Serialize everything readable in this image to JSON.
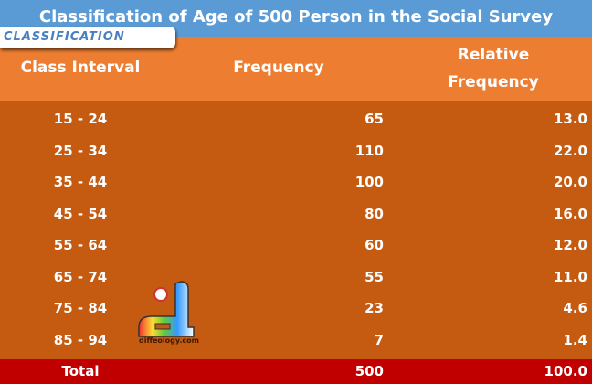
{
  "title": "Classification of Age of 500 Person in the Social Survey",
  "badge": "CLASSIFICATION",
  "logo_text": "diffeology.com",
  "colors": {
    "title_bg": "#5b9bd5",
    "header_bg": "#ed7d31",
    "body_bg": "#c55a11",
    "total_bg": "#c00000"
  },
  "chart_data": {
    "type": "table",
    "title": "Classification of Age of 500 Person in the Social Survey",
    "columns": [
      "Class Interval",
      "Frequency",
      "Relative Frequency"
    ],
    "columns_display": {
      "c1": "Class Interval",
      "c2": "Frequency",
      "c3_line1": "Relative",
      "c3_line2": "Frequency"
    },
    "rows": [
      [
        "15 - 24",
        "65",
        "13.0"
      ],
      [
        "25 - 34",
        "110",
        "22.0"
      ],
      [
        "35 - 44",
        "100",
        "20.0"
      ],
      [
        "45 - 54",
        "80",
        "16.0"
      ],
      [
        "55 - 64",
        "60",
        "12.0"
      ],
      [
        "65 - 74",
        "55",
        "11.0"
      ],
      [
        "75 - 84",
        "23",
        "4.6"
      ],
      [
        "85 - 94",
        "7",
        "1.4"
      ]
    ],
    "total": [
      "Total",
      "500",
      "100.0"
    ]
  }
}
